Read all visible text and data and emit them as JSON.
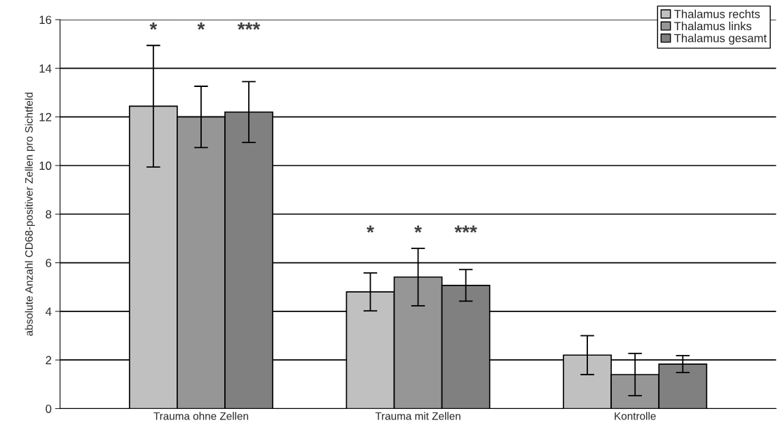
{
  "chart_data": {
    "type": "bar",
    "ylabel": "absolute Anzahl CD68-positiver Zellen pro Sichtfeld",
    "categories": [
      "Trauma ohne Zellen",
      "Trauma mit Zellen",
      "Kontrolle"
    ],
    "series": [
      {
        "name": "Thalamus rechts",
        "color": "#c0c0c0",
        "values": [
          12.44,
          4.8,
          2.2
        ],
        "errors": [
          2.5,
          0.78,
          0.8
        ]
      },
      {
        "name": "Thalamus links",
        "color": "#969696",
        "values": [
          12.0,
          5.41,
          1.4
        ],
        "errors": [
          1.26,
          1.18,
          0.87
        ]
      },
      {
        "name": "Thalamus gesamt",
        "color": "#808080",
        "values": [
          12.2,
          5.07,
          1.83
        ],
        "errors": [
          1.25,
          0.65,
          0.35
        ]
      }
    ],
    "ylim": [
      0,
      16
    ],
    "yticks": [
      0,
      2,
      4,
      6,
      8,
      10,
      12,
      14,
      16
    ],
    "grid": "y",
    "legend": "top right",
    "annotations": [
      "*",
      "*",
      "***",
      "*",
      "*",
      "***"
    ]
  }
}
